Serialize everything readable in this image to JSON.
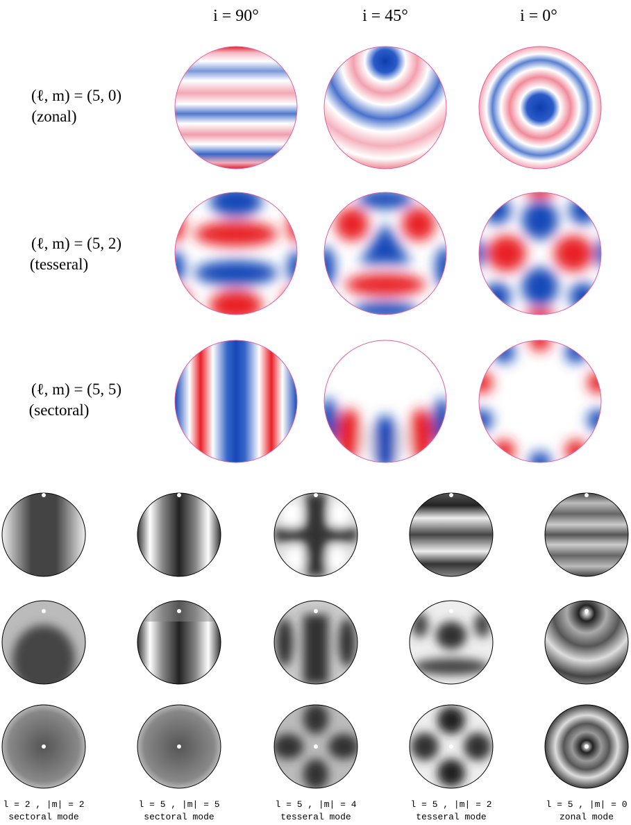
{
  "column_headers": [
    "i = 90°",
    "i = 45°",
    "i = 0°"
  ],
  "rows": [
    {
      "label": "(ℓ, m) = (5, 0)",
      "kind": "(zonal)"
    },
    {
      "label": "(ℓ, m) = (5, 2)",
      "kind": "(tesseral)"
    },
    {
      "label": "(ℓ, m) = (5, 5)",
      "kind": "(sectoral)"
    }
  ],
  "modes": [
    {
      "label": "l = 2 , |m| = 2",
      "name": "sectoral mode"
    },
    {
      "label": "l = 5 , |m| = 5",
      "name": "sectoral mode"
    },
    {
      "label": "l = 5 , |m| = 4",
      "name": "tesseral mode"
    },
    {
      "label": "l = 5 , |m| = 2",
      "name": "tesseral mode"
    },
    {
      "label": "l = 5 , |m| = 0",
      "name": "zonal mode"
    }
  ]
}
